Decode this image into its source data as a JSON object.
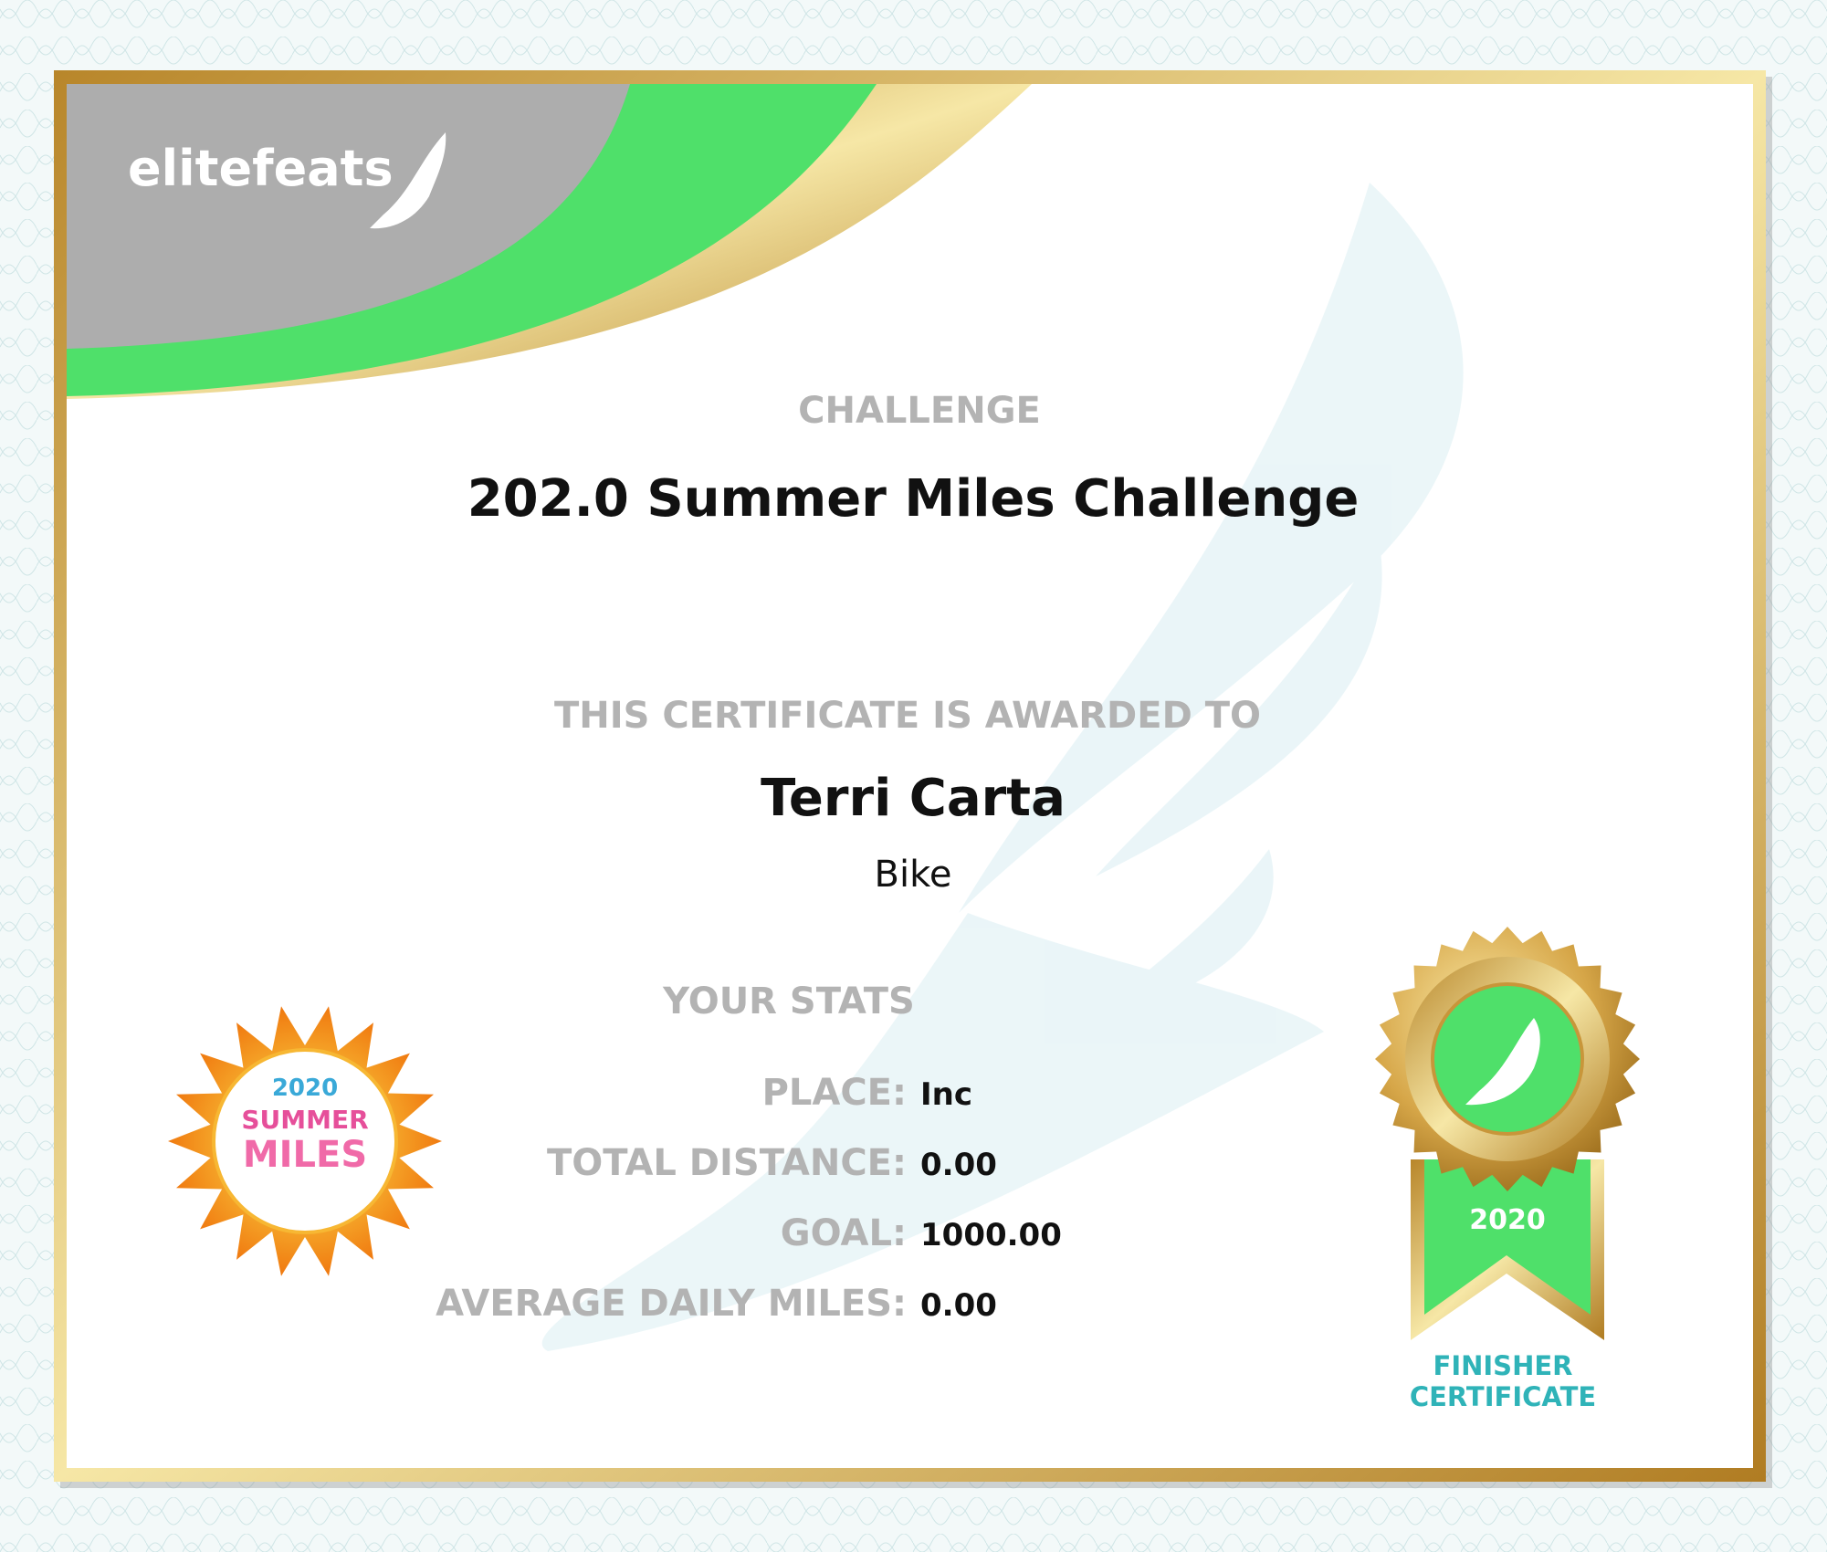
{
  "header": {
    "logo": "elitefeats"
  },
  "challenge": {
    "label": "CHALLENGE",
    "name": "202.0 Summer Miles Challenge"
  },
  "award": {
    "label": "THIS CERTIFICATE IS AWARDED TO",
    "recipient": "Terri Carta",
    "activity": "Bike"
  },
  "stats": {
    "label": "YOUR STATS",
    "rows": [
      {
        "label": "PLACE:",
        "value": "Inc"
      },
      {
        "label": "TOTAL DISTANCE:",
        "value": "0.00"
      },
      {
        "label": "GOAL:",
        "value": "1000.00"
      },
      {
        "label": "AVERAGE DAILY MILES:",
        "value": "0.00"
      }
    ]
  },
  "event_logo": {
    "year": "2020",
    "line1": "SUMMER",
    "line2": "MILES"
  },
  "medal": {
    "year": "2020",
    "line1": "FINISHER",
    "line2": "CERTIFICATE"
  }
}
